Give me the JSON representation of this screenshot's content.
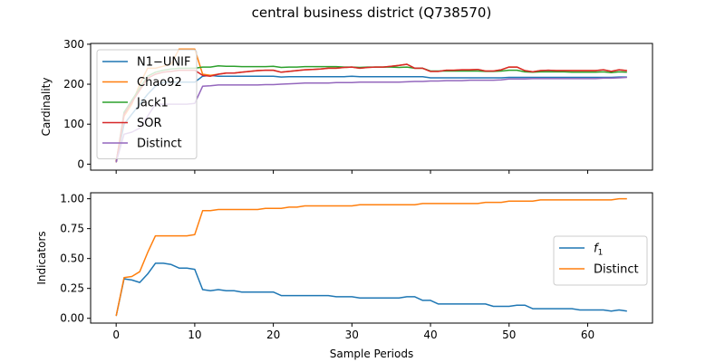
{
  "figure": {
    "title": "central business district (Q738570)"
  },
  "chart_data": [
    {
      "type": "line",
      "ylabel": "Cardinality",
      "xlabel": "",
      "xlim": [
        -3.25,
        68.25
      ],
      "ylim": [
        -15,
        302
      ],
      "xticks": [
        0,
        10,
        20,
        30,
        40,
        50,
        60
      ],
      "yticks": [
        0,
        100,
        200,
        300
      ],
      "grid": false,
      "legend_position": "upper-left",
      "series": [
        {
          "name": "N1−UNIF",
          "color": "#1f77b4",
          "x": [
            0,
            1,
            2,
            3,
            4,
            5,
            6,
            7,
            8,
            9,
            10,
            11,
            12,
            13,
            14,
            15,
            16,
            17,
            18,
            19,
            20,
            21,
            22,
            23,
            24,
            25,
            26,
            27,
            28,
            29,
            30,
            31,
            32,
            33,
            34,
            35,
            36,
            37,
            38,
            39,
            40,
            41,
            42,
            43,
            44,
            45,
            46,
            47,
            48,
            49,
            50,
            51,
            52,
            53,
            54,
            55,
            56,
            57,
            58,
            59,
            60,
            61,
            62,
            63,
            64,
            65
          ],
          "values": [
            5,
            100,
            125,
            150,
            175,
            195,
            205,
            205,
            205,
            205,
            205,
            220,
            222,
            220,
            220,
            220,
            220,
            220,
            220,
            220,
            220,
            218,
            219,
            219,
            219,
            219,
            219,
            219,
            219,
            219,
            220,
            219,
            219,
            219,
            219,
            219,
            219,
            219,
            219,
            219,
            216,
            216,
            216,
            216,
            216,
            216,
            216,
            216,
            216,
            216,
            217,
            217,
            217,
            217,
            217,
            217,
            217,
            217,
            217,
            217,
            217,
            217,
            217,
            217,
            218,
            218
          ]
        },
        {
          "name": "Chao92",
          "color": "#ff7f0e",
          "x": [
            0,
            1,
            2,
            3,
            4,
            5,
            6,
            7,
            8,
            9,
            10,
            11,
            12,
            13,
            14,
            15,
            16,
            17,
            18,
            19,
            20,
            21,
            22,
            23,
            24,
            25,
            26,
            27,
            28,
            29,
            30,
            31,
            32,
            33,
            34,
            35,
            36,
            37,
            38,
            39,
            40,
            41,
            42,
            43,
            44,
            45,
            46,
            47,
            48,
            49,
            50,
            51,
            52,
            53,
            54,
            55,
            56,
            57,
            58,
            59,
            60,
            61,
            62,
            63,
            64,
            65
          ],
          "values": [
            5,
            120,
            150,
            200,
            240,
            240,
            245,
            250,
            288,
            288,
            288,
            225,
            222,
            225,
            228,
            228,
            230,
            232,
            234,
            235,
            235,
            230,
            232,
            234,
            236,
            237,
            238,
            240,
            240,
            242,
            243,
            240,
            242,
            243,
            243,
            245,
            247,
            250,
            240,
            240,
            232,
            232,
            235,
            235,
            236,
            236,
            237,
            233,
            233,
            236,
            243,
            243,
            234,
            231,
            234,
            235,
            234,
            234,
            234,
            234,
            234,
            234,
            236,
            232,
            236,
            234
          ]
        },
        {
          "name": "Jack1",
          "color": "#2ca02c",
          "x": [
            0,
            1,
            2,
            3,
            4,
            5,
            6,
            7,
            8,
            9,
            10,
            11,
            12,
            13,
            14,
            15,
            16,
            17,
            18,
            19,
            20,
            21,
            22,
            23,
            24,
            25,
            26,
            27,
            28,
            29,
            30,
            31,
            32,
            33,
            34,
            35,
            36,
            37,
            38,
            39,
            40,
            41,
            42,
            43,
            44,
            45,
            46,
            47,
            48,
            49,
            50,
            51,
            52,
            53,
            54,
            55,
            56,
            57,
            58,
            59,
            60,
            61,
            62,
            63,
            64,
            65
          ],
          "values": [
            5,
            130,
            160,
            190,
            220,
            230,
            235,
            238,
            240,
            240,
            240,
            243,
            243,
            246,
            245,
            245,
            244,
            244,
            244,
            244,
            245,
            242,
            243,
            243,
            244,
            244,
            244,
            244,
            244,
            243,
            243,
            242,
            243,
            243,
            243,
            243,
            242,
            243,
            240,
            240,
            233,
            233,
            233,
            233,
            233,
            233,
            233,
            232,
            232,
            233,
            235,
            235,
            231,
            230,
            231,
            231,
            231,
            231,
            230,
            230,
            230,
            230,
            231,
            229,
            231,
            230
          ]
        },
        {
          "name": "SOR",
          "color": "#d62728",
          "x": [
            0,
            1,
            2,
            3,
            4,
            5,
            6,
            7,
            8,
            9,
            10,
            11,
            12,
            13,
            14,
            15,
            16,
            17,
            18,
            19,
            20,
            21,
            22,
            23,
            24,
            25,
            26,
            27,
            28,
            29,
            30,
            31,
            32,
            33,
            34,
            35,
            36,
            37,
            38,
            39,
            40,
            41,
            42,
            43,
            44,
            45,
            46,
            47,
            48,
            49,
            50,
            51,
            52,
            53,
            54,
            55,
            56,
            57,
            58,
            59,
            60,
            61,
            62,
            63,
            64,
            65
          ],
          "values": [
            5,
            125,
            155,
            185,
            215,
            225,
            230,
            232,
            235,
            235,
            235,
            222,
            220,
            225,
            228,
            228,
            230,
            232,
            234,
            235,
            235,
            230,
            232,
            234,
            236,
            237,
            238,
            240,
            240,
            242,
            243,
            240,
            242,
            243,
            243,
            245,
            247,
            250,
            240,
            240,
            232,
            232,
            235,
            235,
            236,
            236,
            237,
            233,
            233,
            236,
            243,
            243,
            234,
            231,
            234,
            235,
            234,
            234,
            234,
            234,
            234,
            234,
            236,
            232,
            236,
            234
          ]
        },
        {
          "name": "Distinct",
          "color": "#9467bd",
          "x": [
            0,
            1,
            2,
            3,
            4,
            5,
            6,
            7,
            8,
            9,
            10,
            11,
            12,
            13,
            14,
            15,
            16,
            17,
            18,
            19,
            20,
            21,
            22,
            23,
            24,
            25,
            26,
            27,
            28,
            29,
            30,
            31,
            32,
            33,
            34,
            35,
            36,
            37,
            38,
            39,
            40,
            41,
            42,
            43,
            44,
            45,
            46,
            47,
            48,
            49,
            50,
            51,
            52,
            53,
            54,
            55,
            56,
            57,
            58,
            59,
            60,
            61,
            62,
            63,
            64,
            65
          ],
          "values": [
            5,
            75,
            80,
            90,
            120,
            150,
            150,
            150,
            150,
            150,
            152,
            195,
            196,
            198,
            198,
            198,
            198,
            198,
            198,
            199,
            199,
            200,
            201,
            202,
            203,
            203,
            203,
            203,
            204,
            204,
            204,
            205,
            205,
            205,
            205,
            205,
            205,
            206,
            207,
            207,
            208,
            208,
            209,
            209,
            209,
            210,
            210,
            210,
            210,
            211,
            213,
            213,
            213,
            214,
            214,
            214,
            214,
            214,
            214,
            214,
            214,
            214,
            215,
            215,
            216,
            217
          ]
        }
      ]
    },
    {
      "type": "line",
      "ylabel": "Indicators",
      "xlabel": "Sample Periods",
      "xlim": [
        -3.25,
        68.25
      ],
      "ylim": [
        -0.04,
        1.05
      ],
      "xticks": [
        0,
        10,
        20,
        30,
        40,
        50,
        60
      ],
      "yticks": [
        "0.00",
        "0.25",
        "0.50",
        "0.75",
        "1.00"
      ],
      "grid": false,
      "legend_position": "center-right",
      "series": [
        {
          "name": "f1",
          "color": "#1f77b4",
          "x": [
            0,
            1,
            2,
            3,
            4,
            5,
            6,
            7,
            8,
            9,
            10,
            11,
            12,
            13,
            14,
            15,
            16,
            17,
            18,
            19,
            20,
            21,
            22,
            23,
            24,
            25,
            26,
            27,
            28,
            29,
            30,
            31,
            32,
            33,
            34,
            35,
            36,
            37,
            38,
            39,
            40,
            41,
            42,
            43,
            44,
            45,
            46,
            47,
            48,
            49,
            50,
            51,
            52,
            53,
            54,
            55,
            56,
            57,
            58,
            59,
            60,
            61,
            62,
            63,
            64,
            65
          ],
          "values": [
            0.02,
            0.33,
            0.32,
            0.3,
            0.37,
            0.46,
            0.46,
            0.45,
            0.42,
            0.42,
            0.41,
            0.24,
            0.23,
            0.24,
            0.23,
            0.23,
            0.22,
            0.22,
            0.22,
            0.22,
            0.22,
            0.19,
            0.19,
            0.19,
            0.19,
            0.19,
            0.19,
            0.19,
            0.18,
            0.18,
            0.18,
            0.17,
            0.17,
            0.17,
            0.17,
            0.17,
            0.17,
            0.18,
            0.18,
            0.15,
            0.15,
            0.12,
            0.12,
            0.12,
            0.12,
            0.12,
            0.12,
            0.12,
            0.1,
            0.1,
            0.1,
            0.11,
            0.11,
            0.08,
            0.08,
            0.08,
            0.08,
            0.08,
            0.08,
            0.07,
            0.07,
            0.07,
            0.07,
            0.06,
            0.07,
            0.06
          ]
        },
        {
          "name": "Distinct",
          "color": "#ff7f0e",
          "x": [
            0,
            1,
            2,
            3,
            4,
            5,
            6,
            7,
            8,
            9,
            10,
            11,
            12,
            13,
            14,
            15,
            16,
            17,
            18,
            19,
            20,
            21,
            22,
            23,
            24,
            25,
            26,
            27,
            28,
            29,
            30,
            31,
            32,
            33,
            34,
            35,
            36,
            37,
            38,
            39,
            40,
            41,
            42,
            43,
            44,
            45,
            46,
            47,
            48,
            49,
            50,
            51,
            52,
            53,
            54,
            55,
            56,
            57,
            58,
            59,
            60,
            61,
            62,
            63,
            64,
            65
          ],
          "values": [
            0.02,
            0.34,
            0.35,
            0.39,
            0.55,
            0.69,
            0.69,
            0.69,
            0.69,
            0.69,
            0.7,
            0.9,
            0.9,
            0.91,
            0.91,
            0.91,
            0.91,
            0.91,
            0.91,
            0.92,
            0.92,
            0.92,
            0.93,
            0.93,
            0.94,
            0.94,
            0.94,
            0.94,
            0.94,
            0.94,
            0.94,
            0.95,
            0.95,
            0.95,
            0.95,
            0.95,
            0.95,
            0.95,
            0.95,
            0.96,
            0.96,
            0.96,
            0.96,
            0.96,
            0.96,
            0.96,
            0.96,
            0.97,
            0.97,
            0.97,
            0.98,
            0.98,
            0.98,
            0.98,
            0.99,
            0.99,
            0.99,
            0.99,
            0.99,
            0.99,
            0.99,
            0.99,
            0.99,
            0.99,
            1.0,
            1.0
          ]
        }
      ]
    }
  ]
}
